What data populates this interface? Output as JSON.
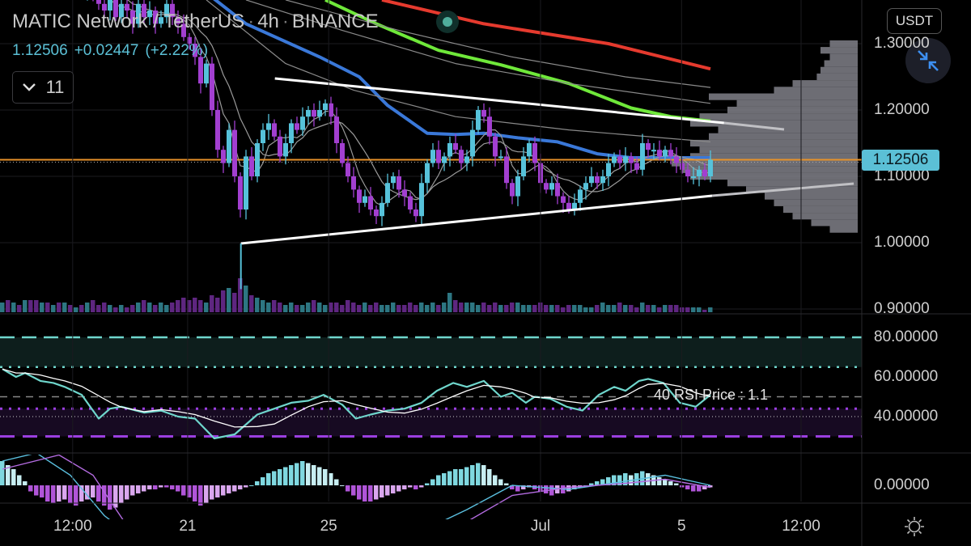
{
  "header": {
    "symbol": "MATIC Network / TetherUS",
    "interval": "4h",
    "exchange": "BINANCE",
    "separator": "·",
    "last_price": "1.12506",
    "change": "+0.02447",
    "change_pct": "(+2.22%)",
    "indicators_toggle_count": "11",
    "currency_button": "USDT"
  },
  "icons": {
    "market_status": "green-dot-icon",
    "collapse": "chevron-down-icon",
    "fullscreen_exit": "compress-arrows-icon",
    "settings": "sun-gear-icon"
  },
  "colors": {
    "up": "#56c2da",
    "down": "#a23fd0",
    "ma_blue": "#3a78d8",
    "ma_green": "#6fe83a",
    "ma_red": "#e53a2e",
    "ma_gray": "#8a8a8a",
    "trendline": "#ffffff",
    "price_line": "#e8922a",
    "profile": "#808088"
  },
  "price_axis": {
    "labels": [
      "1.30000",
      "1.20000",
      "1.10000",
      "1.00000",
      "0.90000"
    ],
    "values": [
      1.3,
      1.2,
      1.1,
      1.0,
      0.9
    ],
    "current_tag": "1.12506",
    "current": 1.12506
  },
  "rsi_axis": {
    "labels": [
      "80.00000",
      "60.00000",
      "40.00000"
    ],
    "values": [
      80,
      60,
      40
    ]
  },
  "macd_axis": {
    "labels": [
      "0.00000"
    ],
    "values": [
      0
    ]
  },
  "time_axis": {
    "labels": [
      "12:00",
      "21",
      "25",
      "Jul",
      "5",
      "12:00"
    ],
    "candle_index": [
      12.4,
      32.7,
      57.6,
      95,
      119.9,
      141
    ]
  },
  "rsi_note": "40 RSI Price : 1.1",
  "chart_data": {
    "type": "candlestick",
    "title": "MATIC Network / TetherUS · 4h · BINANCE",
    "ylim": [
      0.9,
      1.35
    ],
    "grid": true,
    "close": [
      1.45,
      1.44,
      1.46,
      1.43,
      1.45,
      1.44,
      1.42,
      1.43,
      1.41,
      1.42,
      1.4,
      1.41,
      1.39,
      1.4,
      1.38,
      1.39,
      1.37,
      1.36,
      1.35,
      1.37,
      1.34,
      1.36,
      1.35,
      1.33,
      1.36,
      1.34,
      1.35,
      1.33,
      1.34,
      1.36,
      1.34,
      1.33,
      1.31,
      1.3,
      1.28,
      1.24,
      1.27,
      1.2,
      1.14,
      1.12,
      1.17,
      1.1,
      1.05,
      1.13,
      1.1,
      1.15,
      1.17,
      1.18,
      1.16,
      1.13,
      1.15,
      1.18,
      1.17,
      1.19,
      1.2,
      1.19,
      1.2,
      1.21,
      1.19,
      1.15,
      1.12,
      1.1,
      1.08,
      1.06,
      1.07,
      1.05,
      1.04,
      1.06,
      1.09,
      1.1,
      1.08,
      1.07,
      1.05,
      1.04,
      1.09,
      1.12,
      1.14,
      1.12,
      1.13,
      1.15,
      1.14,
      1.12,
      1.13,
      1.17,
      1.2,
      1.19,
      1.16,
      1.13,
      1.13,
      1.09,
      1.07,
      1.1,
      1.13,
      1.15,
      1.12,
      1.09,
      1.08,
      1.09,
      1.07,
      1.06,
      1.05,
      1.06,
      1.08,
      1.09,
      1.1,
      1.09,
      1.1,
      1.12,
      1.13,
      1.12,
      1.13,
      1.12,
      1.11,
      1.15,
      1.14,
      1.14,
      1.13,
      1.14,
      1.13,
      1.12,
      1.11,
      1.1,
      1.1,
      1.11,
      1.1,
      1.12506
    ],
    "volume": [
      4,
      5,
      4,
      3,
      5,
      5,
      5,
      4,
      4,
      3,
      4,
      4,
      3,
      2,
      3,
      4,
      5,
      3,
      4,
      3,
      2,
      3,
      2,
      3,
      4,
      5,
      4,
      3,
      4,
      3,
      4,
      5,
      6,
      5,
      6,
      5,
      4,
      7,
      6,
      9,
      10,
      8,
      14,
      11,
      7,
      6,
      5,
      4,
      5,
      4,
      3,
      4,
      3,
      3,
      4,
      5,
      4,
      3,
      4,
      4,
      3,
      5,
      4,
      3,
      4,
      3,
      4,
      3,
      3,
      4,
      3,
      3,
      4,
      3,
      4,
      3,
      4,
      3,
      4,
      8,
      5,
      4,
      4,
      4,
      3,
      4,
      3,
      4,
      3,
      3,
      4,
      4,
      3,
      3,
      3,
      4,
      3,
      3,
      3,
      2,
      3,
      3,
      3,
      2,
      2,
      3,
      4,
      3,
      3,
      4,
      3,
      3,
      2,
      4,
      3,
      3,
      2,
      3,
      3,
      3,
      2,
      2,
      2,
      2,
      1,
      2
    ],
    "moving_averages": [
      {
        "color": "ma_blue",
        "points": [
          [
            37,
            1.37
          ],
          [
            43,
            1.33
          ],
          [
            56,
            1.28
          ],
          [
            63,
            1.25
          ],
          [
            68,
            1.207
          ],
          [
            75,
            1.165
          ],
          [
            80,
            1.163
          ],
          [
            85,
            1.165
          ],
          [
            91,
            1.158
          ],
          [
            98,
            1.152
          ],
          [
            105,
            1.134
          ],
          [
            111,
            1.128
          ],
          [
            125,
            1.128
          ]
        ]
      },
      {
        "color": "ma_green",
        "points": [
          [
            57,
            1.366
          ],
          [
            66,
            1.33
          ],
          [
            77,
            1.29
          ],
          [
            88,
            1.268
          ],
          [
            100,
            1.24
          ],
          [
            111,
            1.203
          ],
          [
            118,
            1.19
          ],
          [
            125,
            1.183
          ]
        ]
      },
      {
        "color": "ma_red",
        "points": [
          [
            67,
            1.366
          ],
          [
            85,
            1.33
          ],
          [
            107,
            1.3
          ],
          [
            125,
            1.262
          ]
        ]
      },
      {
        "color": "ma_gray",
        "points": [
          [
            50,
            1.366
          ],
          [
            70,
            1.32
          ],
          [
            90,
            1.28
          ],
          [
            110,
            1.25
          ],
          [
            125,
            1.234
          ]
        ]
      },
      {
        "color": "ma_gray",
        "points": [
          [
            43,
            1.366
          ],
          [
            60,
            1.32
          ],
          [
            80,
            1.27
          ],
          [
            100,
            1.24
          ],
          [
            125,
            1.21
          ]
        ]
      },
      {
        "color": "ma_gray",
        "points": [
          [
            36,
            1.366
          ],
          [
            50,
            1.27
          ],
          [
            62,
            1.23
          ],
          [
            80,
            1.19
          ],
          [
            100,
            1.17
          ],
          [
            125,
            1.152
          ]
        ]
      }
    ],
    "trendlines": [
      {
        "name": "upper",
        "from": [
          48.1,
          1.2476
        ],
        "to": [
          127.4,
          1.1805
        ],
        "extension_to": [
          138,
          1.1707
        ]
      },
      {
        "name": "lower",
        "from": [
          42.1,
          0.9988
        ],
        "to": [
          125.3,
          1.0707
        ],
        "extension_to": [
          150.3,
          1.089
        ]
      }
    ],
    "volume_profile": {
      "prices": [
        1.3,
        1.29,
        1.28,
        1.27,
        1.26,
        1.25,
        1.24,
        1.23,
        1.22,
        1.21,
        1.2,
        1.19,
        1.18,
        1.17,
        1.16,
        1.15,
        1.14,
        1.13,
        1.12,
        1.11,
        1.1,
        1.09,
        1.08,
        1.07,
        1.06,
        1.05,
        1.04,
        1.03,
        1.02
      ],
      "relative": [
        0.15,
        0.2,
        0.15,
        0.18,
        0.2,
        0.22,
        0.35,
        0.45,
        0.8,
        0.65,
        0.7,
        0.85,
        0.9,
        0.75,
        0.8,
        0.9,
        0.85,
        0.9,
        1.0,
        0.95,
        0.9,
        0.7,
        0.6,
        0.5,
        0.45,
        0.4,
        0.35,
        0.25,
        0.15
      ]
    },
    "rsi": {
      "points": [
        [
          0,
          64
        ],
        [
          2.4,
          60
        ],
        [
          4,
          62
        ],
        [
          6.7,
          58
        ],
        [
          9,
          57
        ],
        [
          11,
          55
        ],
        [
          14,
          51
        ],
        [
          17,
          39
        ],
        [
          19,
          44
        ],
        [
          21,
          45
        ],
        [
          25,
          42
        ],
        [
          28,
          43
        ],
        [
          31,
          40
        ],
        [
          34,
          39
        ],
        [
          37.4,
          29
        ],
        [
          41,
          31
        ],
        [
          45,
          41
        ],
        [
          48,
          44
        ],
        [
          51,
          47
        ],
        [
          54,
          48
        ],
        [
          56.7,
          51
        ],
        [
          60,
          46
        ],
        [
          62.4,
          39
        ],
        [
          65,
          41
        ],
        [
          68,
          43
        ],
        [
          71,
          44
        ],
        [
          74,
          47
        ],
        [
          76.7,
          53
        ],
        [
          79.6,
          57
        ],
        [
          82,
          55
        ],
        [
          85,
          58
        ],
        [
          88,
          50
        ],
        [
          90,
          52
        ],
        [
          92.4,
          47
        ],
        [
          94,
          50
        ],
        [
          96.7,
          49
        ],
        [
          99.6,
          45
        ],
        [
          102.4,
          43
        ],
        [
          105.3,
          51
        ],
        [
          108,
          55
        ],
        [
          110,
          53
        ],
        [
          112.4,
          58
        ],
        [
          114,
          59
        ],
        [
          116.7,
          57
        ],
        [
          119.6,
          47
        ],
        [
          122.4,
          45
        ],
        [
          125,
          51
        ]
      ],
      "levels": {
        "overbought": 80,
        "upper_band": 65,
        "mid": 50,
        "lower_band": 44,
        "oversold": 30
      }
    },
    "macd": {
      "histogram": [
        12,
        10,
        8,
        5,
        2,
        -3,
        -5,
        -6,
        -8,
        -9,
        -8,
        -7,
        -9,
        -10,
        -8,
        -7,
        -6,
        -8,
        -10,
        -12,
        -11,
        -9,
        -7,
        -5,
        -4,
        -3,
        -2,
        -2,
        -1,
        -1,
        -2,
        -3,
        -5,
        -6,
        -8,
        -10,
        -9,
        -7,
        -6,
        -5,
        -4,
        -3,
        -2,
        -1,
        0,
        2,
        4,
        6,
        7,
        8,
        9,
        10,
        11,
        12,
        11,
        10,
        9,
        8,
        6,
        3,
        0,
        -3,
        -5,
        -7,
        -8,
        -8,
        -7,
        -6,
        -5,
        -4,
        -3,
        -2,
        -1,
        -2,
        -1,
        1,
        3,
        5,
        6,
        7,
        8,
        8,
        9,
        10,
        11,
        10,
        8,
        5,
        3,
        1,
        -2,
        -3,
        -2,
        -1,
        -2,
        -3,
        -4,
        -5,
        -4,
        -4,
        -3,
        -2,
        -1,
        0,
        1,
        2,
        3,
        4,
        5,
        5,
        6,
        5,
        6,
        7,
        6,
        5,
        4,
        3,
        2,
        1,
        -1,
        -2,
        -3,
        -3,
        -2,
        -1
      ],
      "macd_line": [
        [
          0,
          12
        ],
        [
          6,
          16
        ],
        [
          12,
          5
        ],
        [
          18,
          -15
        ],
        [
          25,
          -30
        ],
        [
          40,
          -30
        ],
        [
          55,
          -20
        ],
        [
          70,
          -25
        ],
        [
          76,
          -20
        ],
        [
          82,
          -12
        ],
        [
          90,
          0
        ],
        [
          100,
          -2
        ],
        [
          110,
          2
        ],
        [
          117,
          5
        ],
        [
          125,
          0
        ]
      ],
      "signal_line": [
        [
          0,
          8
        ],
        [
          10,
          15
        ],
        [
          16,
          5
        ],
        [
          22,
          -20
        ],
        [
          30,
          -35
        ],
        [
          50,
          -35
        ],
        [
          65,
          -28
        ],
        [
          76,
          -26
        ],
        [
          82,
          -18
        ],
        [
          90,
          -5
        ],
        [
          100,
          -1
        ],
        [
          110,
          1
        ],
        [
          117,
          3
        ],
        [
          125,
          -1
        ]
      ],
      "unit": "0.001"
    }
  }
}
